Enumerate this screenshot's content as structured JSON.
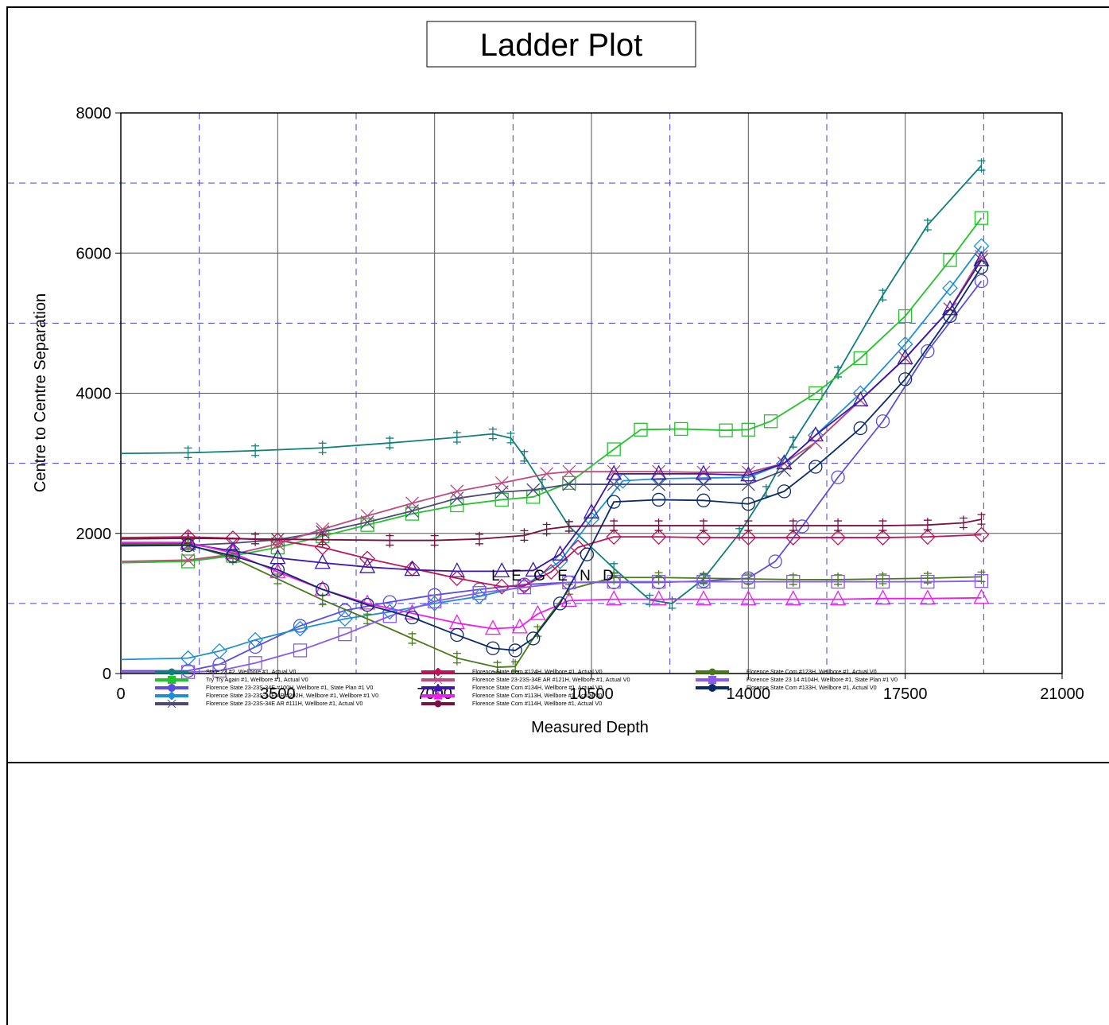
{
  "chart_data": {
    "type": "line",
    "title": "Ladder Plot",
    "xlabel": "Measured Depth",
    "ylabel": "Centre to Centre Separation",
    "xlim": [
      0,
      21000
    ],
    "ylim": [
      0,
      8000
    ],
    "xticks": [
      "0",
      "3500",
      "7000",
      "10500",
      "14000",
      "17500",
      "21000"
    ],
    "yticks": [
      "0",
      "2000",
      "4000",
      "6000",
      "8000"
    ],
    "grid": true,
    "legend_title": "L E G E N D",
    "legend_position": "bottom",
    "series": [
      {
        "name": "State 23 #2, Wellbore #1, Actual V0",
        "color": "#0e7f7a",
        "marker": "plus",
        "x": [
          0,
          1500,
          3000,
          4500,
          6000,
          7500,
          8300,
          8700,
          9000,
          9400,
          10000,
          11000,
          11800,
          12300,
          13000,
          13800,
          14400,
          15000,
          16000,
          17000,
          18000,
          19200
        ],
        "y": [
          3140,
          3150,
          3180,
          3220,
          3290,
          3370,
          3420,
          3360,
          3100,
          2700,
          2100,
          1500,
          1050,
          1000,
          1350,
          2000,
          2600,
          3300,
          4300,
          5400,
          6400,
          7250
        ]
      },
      {
        "name": "Try Try Again #1, Wellbore #1, Actual V0",
        "color": "#22c42a",
        "marker": "square",
        "x": [
          0,
          1500,
          2500,
          3500,
          4500,
          5500,
          6500,
          7500,
          8500,
          9200,
          10000,
          11000,
          11600,
          12500,
          13500,
          14000,
          14500,
          15500,
          16500,
          17500,
          18500,
          19200
        ],
        "y": [
          1580,
          1600,
          1680,
          1800,
          1960,
          2120,
          2280,
          2400,
          2480,
          2520,
          2720,
          3200,
          3480,
          3490,
          3470,
          3480,
          3600,
          4000,
          4500,
          5100,
          5900,
          6500
        ]
      },
      {
        "name": "Florence State 23-23S-34E #100H, Wellbore #1, State Plan #1 V0",
        "color": "#5a4ee0",
        "marker": "circle",
        "x": [
          0,
          1500,
          2200,
          3000,
          4000,
          5000,
          6000,
          7000,
          8000,
          9000,
          10000,
          11000,
          12000,
          13000,
          14000,
          14600,
          15200,
          16000,
          17000,
          18000,
          19200
        ],
        "y": [
          40,
          40,
          130,
          380,
          680,
          900,
          1020,
          1120,
          1200,
          1270,
          1300,
          1300,
          1300,
          1320,
          1360,
          1600,
          2100,
          2800,
          3600,
          4600,
          5600
        ]
      },
      {
        "name": "Florence State 23-23S-34E AR #202H, Wellbore #1, Wellbore #1 V0",
        "color": "#1c8fd6",
        "marker": "diamond",
        "x": [
          0,
          1500,
          2200,
          3000,
          4000,
          5000,
          6000,
          7000,
          8000,
          9000,
          9800,
          10500,
          11200,
          12000,
          13000,
          14000,
          14800,
          15500,
          16500,
          17500,
          18500,
          19200
        ],
        "y": [
          200,
          220,
          320,
          480,
          640,
          780,
          880,
          1000,
          1100,
          1250,
          1600,
          2200,
          2750,
          2780,
          2790,
          2800,
          3000,
          3400,
          4000,
          4700,
          5500,
          6100
        ]
      },
      {
        "name": "Florence State 23-23S-34E AR #111H, Wellbore #1, Actual V0",
        "color": "#4a4a7a",
        "marker": "cross",
        "x": [
          0,
          1500,
          2500,
          3500,
          4500,
          5500,
          6500,
          7500,
          8500,
          9200,
          10000,
          11000,
          12000,
          13000,
          14000,
          14800,
          15500,
          16500,
          17500,
          18500,
          19200
        ],
        "y": [
          1820,
          1830,
          1860,
          1910,
          2020,
          2160,
          2320,
          2500,
          2590,
          2620,
          2700,
          2700,
          2700,
          2700,
          2700,
          2900,
          3300,
          3900,
          4500,
          5200,
          5900
        ]
      },
      {
        "name": "Florence State Com #124H, Wellbore #1, Actual V0",
        "color": "#c0125a",
        "marker": "diamond",
        "x": [
          0,
          1500,
          2500,
          3500,
          4500,
          5500,
          6500,
          7500,
          8500,
          9000,
          9600,
          10200,
          11000,
          12000,
          13000,
          14000,
          15000,
          16000,
          17000,
          18000,
          19200
        ],
        "y": [
          1940,
          1950,
          1930,
          1900,
          1800,
          1640,
          1500,
          1360,
          1240,
          1250,
          1450,
          1800,
          1950,
          1950,
          1940,
          1940,
          1940,
          1940,
          1940,
          1950,
          1980
        ]
      },
      {
        "name": "Florence State 23-23S-34E AR #121H, Wellbore #1, Actual V0",
        "color": "#c04a80",
        "marker": "cross",
        "x": [
          0,
          1500,
          2500,
          3500,
          4500,
          5500,
          6500,
          7500,
          8500,
          9500,
          10000,
          11000,
          12000,
          13000,
          14000,
          14800,
          15500,
          16500,
          17500,
          18500,
          19200
        ],
        "y": [
          1600,
          1620,
          1700,
          1850,
          2060,
          2250,
          2430,
          2600,
          2720,
          2850,
          2880,
          2880,
          2880,
          2870,
          2870,
          3000,
          3300,
          3900,
          4500,
          5200,
          5950
        ]
      },
      {
        "name": "Florence State Com #134H, Wellbore #1, Actual V0",
        "color": "#3a18b0",
        "marker": "triangle",
        "x": [
          0,
          1500,
          2500,
          3500,
          4500,
          5500,
          6500,
          7500,
          8500,
          9200,
          9800,
          10500,
          11000,
          12000,
          13000,
          14000,
          14800,
          15500,
          16500,
          17500,
          18500,
          19200
        ],
        "y": [
          1850,
          1850,
          1750,
          1650,
          1580,
          1520,
          1480,
          1460,
          1460,
          1470,
          1700,
          2300,
          2850,
          2850,
          2850,
          2830,
          3000,
          3400,
          3900,
          4500,
          5200,
          5900
        ]
      },
      {
        "name": "Florence State Com #113H, Wellbore #1, Actual V0",
        "color": "#ee1cee",
        "marker": "triangle",
        "x": [
          0,
          1500,
          2500,
          3500,
          4500,
          5500,
          6500,
          7500,
          8300,
          8900,
          9300,
          10000,
          11000,
          12000,
          13000,
          14000,
          15000,
          16000,
          17000,
          18000,
          19200
        ],
        "y": [
          1870,
          1870,
          1720,
          1450,
          1200,
          1000,
          860,
          720,
          640,
          660,
          850,
          1040,
          1060,
          1060,
          1060,
          1060,
          1060,
          1060,
          1070,
          1070,
          1080
        ]
      },
      {
        "name": "Florence State Com #114H, Wellbore #1, Actual V0",
        "color": "#7a1040",
        "marker": "plus",
        "x": [
          0,
          1500,
          3000,
          4500,
          6000,
          7000,
          8000,
          9000,
          9500,
          10000,
          11000,
          12000,
          13000,
          14000,
          15000,
          16000,
          17000,
          18000,
          18800,
          19200
        ],
        "y": [
          1920,
          1930,
          1920,
          1910,
          1900,
          1900,
          1920,
          1970,
          2060,
          2100,
          2110,
          2110,
          2110,
          2110,
          2110,
          2110,
          2110,
          2120,
          2150,
          2200
        ]
      },
      {
        "name": "Florence State Com #123H, Wellbore #1, Actual V0",
        "color": "#4a7a18",
        "marker": "plus",
        "x": [
          0,
          1500,
          2500,
          3500,
          4500,
          5500,
          6500,
          7500,
          8400,
          8800,
          9300,
          10000,
          11000,
          12000,
          13000,
          14000,
          15000,
          16000,
          17000,
          18000,
          19200
        ],
        "y": [
          1850,
          1840,
          1650,
          1350,
          1050,
          780,
          500,
          220,
          90,
          100,
          600,
          1200,
          1370,
          1370,
          1360,
          1350,
          1340,
          1340,
          1350,
          1360,
          1380
        ]
      },
      {
        "name": "Florence State 23 14 #104H, Wellbore #1, State Plan #1 V0",
        "color": "#8a5af0",
        "marker": "square",
        "x": [
          0,
          1500,
          2200,
          3000,
          4000,
          5000,
          6000,
          7000,
          8000,
          9000,
          10000,
          11000,
          12000,
          13000,
          14000,
          15000,
          16000,
          17000,
          18000,
          19200
        ],
        "y": [
          20,
          20,
          40,
          150,
          330,
          560,
          820,
          1030,
          1150,
          1230,
          1300,
          1310,
          1310,
          1310,
          1310,
          1310,
          1310,
          1310,
          1310,
          1320
        ]
      },
      {
        "name": "Florence State Com #133H, Wellbore #1, Actual V0",
        "color": "#0a2a6a",
        "marker": "circle",
        "x": [
          0,
          1500,
          2500,
          3500,
          4500,
          5500,
          6500,
          7500,
          8300,
          8800,
          9200,
          9800,
          10400,
          11000,
          12000,
          13000,
          14000,
          14800,
          15500,
          16500,
          17500,
          18500,
          19200
        ],
        "y": [
          1830,
          1830,
          1680,
          1480,
          1200,
          980,
          800,
          550,
          360,
          330,
          500,
          1000,
          1700,
          2450,
          2480,
          2470,
          2420,
          2600,
          2950,
          3500,
          4200,
          5100,
          5800
        ]
      }
    ]
  }
}
